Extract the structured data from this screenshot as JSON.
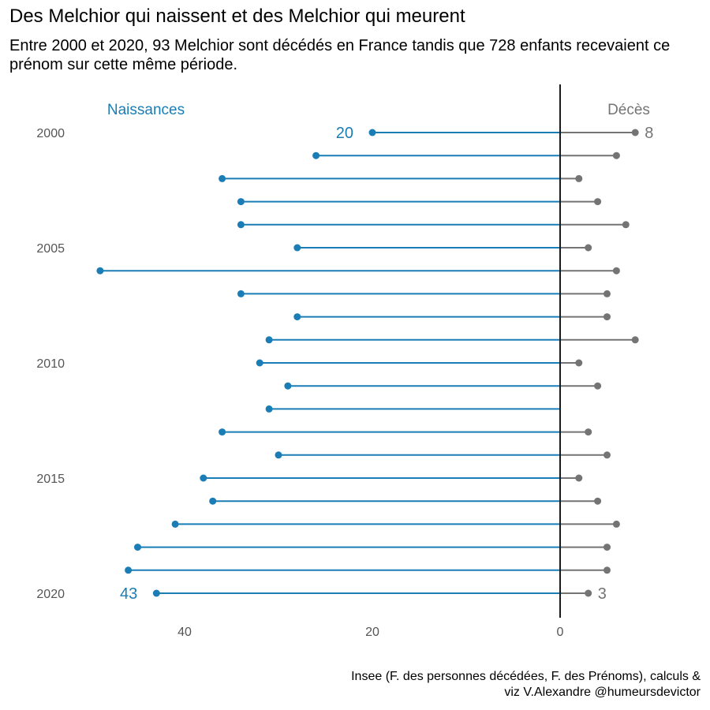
{
  "title": "Des Melchior qui naissent et des Melchior qui meurent",
  "subtitle": "Entre 2000 et 2020, 93 Melchior sont décédés en France tandis que 728 enfants recevaient ce prénom sur cette même période.",
  "caption": {
    "line1": "Insee (F. des personnes décédées, F. des Prénoms), calculs &",
    "line2": "viz V.Alexandre @humeursdevictor"
  },
  "colors": {
    "births": "#1a7db5",
    "deaths": "#747474",
    "axis": "#1a1a1a",
    "tick": "#555555"
  },
  "chart_data": {
    "type": "lollipop",
    "categories": [
      2000,
      2001,
      2002,
      2003,
      2004,
      2005,
      2006,
      2007,
      2008,
      2009,
      2010,
      2011,
      2012,
      2013,
      2014,
      2015,
      2016,
      2017,
      2018,
      2019,
      2020
    ],
    "y_tick_labels": [
      "2000",
      "2005",
      "2010",
      "2015",
      "2020"
    ],
    "x_tick_labels": [
      "40",
      "20",
      "0"
    ],
    "series": [
      {
        "name": "Naissances",
        "direction": "left",
        "values": [
          20,
          26,
          36,
          34,
          34,
          28,
          49,
          34,
          28,
          31,
          32,
          29,
          31,
          36,
          30,
          38,
          37,
          41,
          45,
          46,
          43
        ]
      },
      {
        "name": "Décès",
        "direction": "right",
        "values": [
          8,
          6,
          2,
          4,
          7,
          3,
          6,
          5,
          5,
          8,
          2,
          4,
          0,
          3,
          5,
          2,
          4,
          6,
          5,
          5,
          3
        ]
      }
    ],
    "annotations": [
      {
        "series": "Naissances",
        "year": 2000,
        "text": "20"
      },
      {
        "series": "Naissances",
        "year": 2020,
        "text": "43"
      },
      {
        "series": "Décès",
        "year": 2000,
        "text": "8"
      },
      {
        "series": "Décès",
        "year": 2020,
        "text": "3"
      }
    ],
    "xlim": [
      -49,
      10
    ],
    "grid": false
  }
}
